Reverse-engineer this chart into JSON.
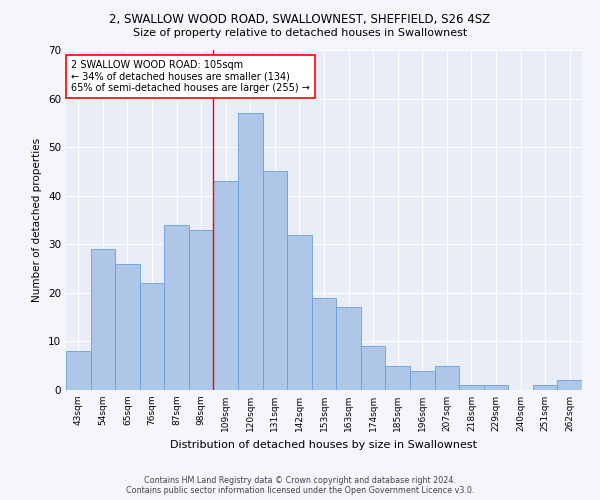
{
  "title1": "2, SWALLOW WOOD ROAD, SWALLOWNEST, SHEFFIELD, S26 4SZ",
  "title2": "Size of property relative to detached houses in Swallownest",
  "xlabel": "Distribution of detached houses by size in Swallownest",
  "ylabel": "Number of detached properties",
  "categories": [
    "43sqm",
    "54sqm",
    "65sqm",
    "76sqm",
    "87sqm",
    "98sqm",
    "109sqm",
    "120sqm",
    "131sqm",
    "142sqm",
    "153sqm",
    "163sqm",
    "174sqm",
    "185sqm",
    "196sqm",
    "207sqm",
    "218sqm",
    "229sqm",
    "240sqm",
    "251sqm",
    "262sqm"
  ],
  "values": [
    8,
    29,
    26,
    22,
    34,
    33,
    43,
    57,
    45,
    32,
    19,
    17,
    9,
    5,
    4,
    5,
    1,
    1,
    0,
    1,
    2
  ],
  "bar_color": "#aec6e8",
  "bar_edge_color": "#6a9fd8",
  "ylim": [
    0,
    70
  ],
  "yticks": [
    0,
    10,
    20,
    30,
    40,
    50,
    60,
    70
  ],
  "red_line_x": 5.5,
  "annotation_title": "2 SWALLOW WOOD ROAD: 105sqm",
  "annotation_line1": "← 34% of detached houses are smaller (134)",
  "annotation_line2": "65% of semi-detached houses are larger (255) →",
  "footer1": "Contains HM Land Registry data © Crown copyright and database right 2024.",
  "footer2": "Contains public sector information licensed under the Open Government Licence v3.0.",
  "background_color": "#f4f6fc",
  "plot_bg_color": "#e8edf8"
}
